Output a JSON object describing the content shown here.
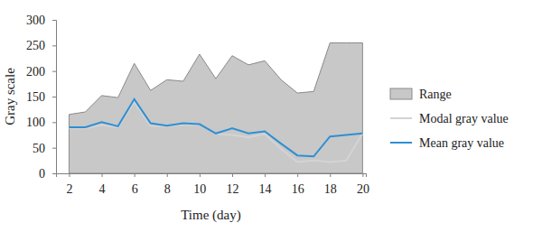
{
  "chart_data": {
    "type": "line",
    "x_label": "Time (day)",
    "y_label": "Gray scale",
    "x": [
      2,
      3,
      4,
      5,
      6,
      7,
      8,
      9,
      10,
      11,
      12,
      13,
      14,
      15,
      16,
      17,
      18,
      19,
      20
    ],
    "series": [
      {
        "name": "Range",
        "type": "area",
        "color": "#c8c8c8",
        "values": [
          115,
          120,
          152,
          148,
          215,
          162,
          183,
          180,
          233,
          185,
          230,
          212,
          220,
          183,
          157,
          160,
          255,
          255,
          255
        ]
      },
      {
        "name": "Modal gray value",
        "type": "line",
        "color": "#d4d4d4",
        "values": [
          88,
          88,
          95,
          90,
          140,
          93,
          92,
          95,
          95,
          77,
          75,
          70,
          77,
          48,
          22,
          25,
          22,
          25,
          78
        ]
      },
      {
        "name": "Mean gray value",
        "type": "line",
        "color": "#2f8fd3",
        "values": [
          90,
          90,
          100,
          92,
          145,
          98,
          93,
          98,
          96,
          78,
          88,
          78,
          82,
          58,
          35,
          33,
          72,
          75,
          78
        ]
      }
    ],
    "xlim": [
      1.2,
      20.2
    ],
    "xticks": [
      2,
      4,
      6,
      8,
      10,
      12,
      14,
      16,
      18,
      20
    ],
    "ylim": [
      0,
      300
    ],
    "yticks": [
      0,
      50,
      100,
      150,
      200,
      250,
      300
    ],
    "grid": false,
    "legend": "right"
  }
}
